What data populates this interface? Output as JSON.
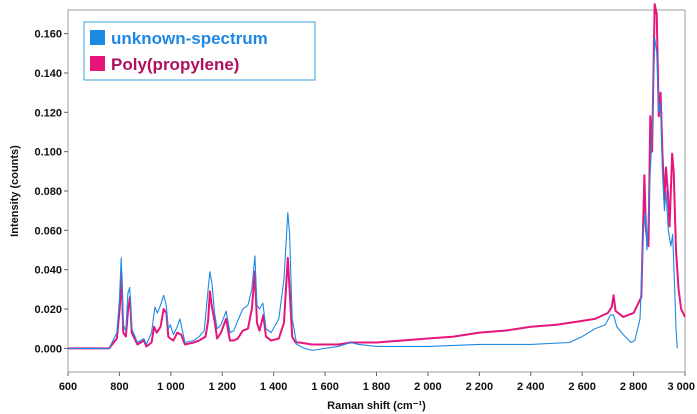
{
  "chart_data": {
    "type": "line",
    "xlabel": "Raman shift (cm⁻¹)",
    "ylabel": "Intensity (counts)",
    "xlim": [
      600,
      3000
    ],
    "ylim": [
      -0.012,
      0.172
    ],
    "xticks": [
      600,
      800,
      1000,
      1200,
      1400,
      1600,
      1800,
      2000,
      2200,
      2400,
      2600,
      2800,
      3000
    ],
    "xtick_labels": [
      "600",
      "800",
      "1 000",
      "1 200",
      "1 400",
      "1 600",
      "1 800",
      "2 000",
      "2 200",
      "2 400",
      "2 600",
      "2 800",
      "3 000"
    ],
    "yticks": [
      0.0,
      0.02,
      0.04,
      0.06,
      0.08,
      0.1,
      0.12,
      0.14,
      0.16
    ],
    "ytick_labels": [
      "0.000",
      "0.020",
      "0.040",
      "0.060",
      "0.080",
      "0.100",
      "0.120",
      "0.140",
      "0.160"
    ],
    "grid": false,
    "legend_position": "top-left",
    "series": [
      {
        "name": "Poly(propylene)",
        "color": "#e6157a",
        "points": [
          [
            600,
            0.0
          ],
          [
            760,
            0.0
          ],
          [
            790,
            0.005
          ],
          [
            801,
            0.02
          ],
          [
            808,
            0.038
          ],
          [
            815,
            0.008
          ],
          [
            825,
            0.006
          ],
          [
            834,
            0.02
          ],
          [
            841,
            0.026
          ],
          [
            848,
            0.008
          ],
          [
            870,
            0.002
          ],
          [
            895,
            0.004
          ],
          [
            905,
            0.001
          ],
          [
            925,
            0.003
          ],
          [
            935,
            0.011
          ],
          [
            945,
            0.008
          ],
          [
            960,
            0.011
          ],
          [
            972,
            0.02
          ],
          [
            983,
            0.018
          ],
          [
            990,
            0.006
          ],
          [
            998,
            0.005
          ],
          [
            1010,
            0.004
          ],
          [
            1025,
            0.008
          ],
          [
            1040,
            0.007
          ],
          [
            1055,
            0.002
          ],
          [
            1090,
            0.003
          ],
          [
            1110,
            0.004
          ],
          [
            1135,
            0.006
          ],
          [
            1145,
            0.014
          ],
          [
            1152,
            0.029
          ],
          [
            1160,
            0.021
          ],
          [
            1170,
            0.014
          ],
          [
            1180,
            0.005
          ],
          [
            1195,
            0.008
          ],
          [
            1215,
            0.015
          ],
          [
            1230,
            0.004
          ],
          [
            1245,
            0.004
          ],
          [
            1260,
            0.005
          ],
          [
            1280,
            0.009
          ],
          [
            1300,
            0.01
          ],
          [
            1315,
            0.02
          ],
          [
            1327,
            0.039
          ],
          [
            1335,
            0.013
          ],
          [
            1345,
            0.009
          ],
          [
            1360,
            0.017
          ],
          [
            1370,
            0.006
          ],
          [
            1390,
            0.004
          ],
          [
            1420,
            0.005
          ],
          [
            1440,
            0.013
          ],
          [
            1455,
            0.046
          ],
          [
            1462,
            0.03
          ],
          [
            1472,
            0.006
          ],
          [
            1485,
            0.003
          ],
          [
            1500,
            0.003
          ],
          [
            1550,
            0.002
          ],
          [
            1600,
            0.002
          ],
          [
            1650,
            0.002
          ],
          [
            1700,
            0.003
          ],
          [
            1750,
            0.003
          ],
          [
            1800,
            0.003
          ],
          [
            1900,
            0.004
          ],
          [
            2000,
            0.005
          ],
          [
            2100,
            0.006
          ],
          [
            2200,
            0.008
          ],
          [
            2300,
            0.009
          ],
          [
            2400,
            0.011
          ],
          [
            2500,
            0.012
          ],
          [
            2600,
            0.014
          ],
          [
            2650,
            0.015
          ],
          [
            2700,
            0.018
          ],
          [
            2715,
            0.021
          ],
          [
            2722,
            0.027
          ],
          [
            2730,
            0.019
          ],
          [
            2760,
            0.016
          ],
          [
            2800,
            0.018
          ],
          [
            2830,
            0.026
          ],
          [
            2842,
            0.088
          ],
          [
            2848,
            0.06
          ],
          [
            2858,
            0.052
          ],
          [
            2865,
            0.118
          ],
          [
            2872,
            0.1
          ],
          [
            2882,
            0.175
          ],
          [
            2890,
            0.17
          ],
          [
            2898,
            0.118
          ],
          [
            2905,
            0.13
          ],
          [
            2912,
            0.1
          ],
          [
            2920,
            0.075
          ],
          [
            2926,
            0.092
          ],
          [
            2933,
            0.08
          ],
          [
            2940,
            0.062
          ],
          [
            2950,
            0.099
          ],
          [
            2956,
            0.09
          ],
          [
            2965,
            0.05
          ],
          [
            2975,
            0.03
          ],
          [
            2985,
            0.02
          ],
          [
            3000,
            0.016
          ]
        ]
      },
      {
        "name": "unknown-spectrum",
        "color": "#1e88e5",
        "points": [
          [
            600,
            0.0
          ],
          [
            760,
            0.0
          ],
          [
            790,
            0.008
          ],
          [
            800,
            0.025
          ],
          [
            807,
            0.046
          ],
          [
            815,
            0.012
          ],
          [
            825,
            0.009
          ],
          [
            833,
            0.028
          ],
          [
            840,
            0.031
          ],
          [
            848,
            0.01
          ],
          [
            870,
            0.003
          ],
          [
            895,
            0.005
          ],
          [
            905,
            0.002
          ],
          [
            925,
            0.008
          ],
          [
            938,
            0.021
          ],
          [
            948,
            0.018
          ],
          [
            960,
            0.022
          ],
          [
            972,
            0.027
          ],
          [
            982,
            0.022
          ],
          [
            990,
            0.01
          ],
          [
            998,
            0.012
          ],
          [
            1010,
            0.007
          ],
          [
            1025,
            0.011
          ],
          [
            1035,
            0.015
          ],
          [
            1045,
            0.009
          ],
          [
            1055,
            0.003
          ],
          [
            1090,
            0.004
          ],
          [
            1110,
            0.006
          ],
          [
            1130,
            0.009
          ],
          [
            1145,
            0.03
          ],
          [
            1152,
            0.039
          ],
          [
            1160,
            0.033
          ],
          [
            1170,
            0.018
          ],
          [
            1180,
            0.01
          ],
          [
            1195,
            0.012
          ],
          [
            1215,
            0.019
          ],
          [
            1230,
            0.008
          ],
          [
            1245,
            0.009
          ],
          [
            1260,
            0.014
          ],
          [
            1280,
            0.02
          ],
          [
            1300,
            0.022
          ],
          [
            1315,
            0.03
          ],
          [
            1327,
            0.047
          ],
          [
            1335,
            0.022
          ],
          [
            1345,
            0.02
          ],
          [
            1358,
            0.023
          ],
          [
            1370,
            0.01
          ],
          [
            1390,
            0.008
          ],
          [
            1420,
            0.015
          ],
          [
            1440,
            0.035
          ],
          [
            1455,
            0.069
          ],
          [
            1462,
            0.058
          ],
          [
            1472,
            0.015
          ],
          [
            1490,
            0.002
          ],
          [
            1520,
            0.0
          ],
          [
            1550,
            -0.001
          ],
          [
            1600,
            0.0
          ],
          [
            1650,
            0.001
          ],
          [
            1700,
            0.003
          ],
          [
            1730,
            0.002
          ],
          [
            1800,
            0.001
          ],
          [
            1900,
            0.001
          ],
          [
            2000,
            0.001
          ],
          [
            2200,
            0.002
          ],
          [
            2400,
            0.002
          ],
          [
            2550,
            0.003
          ],
          [
            2600,
            0.006
          ],
          [
            2650,
            0.01
          ],
          [
            2690,
            0.012
          ],
          [
            2710,
            0.017
          ],
          [
            2722,
            0.017
          ],
          [
            2735,
            0.011
          ],
          [
            2760,
            0.007
          ],
          [
            2790,
            0.003
          ],
          [
            2805,
            0.004
          ],
          [
            2825,
            0.015
          ],
          [
            2838,
            0.06
          ],
          [
            2845,
            0.069
          ],
          [
            2852,
            0.05
          ],
          [
            2865,
            0.09
          ],
          [
            2872,
            0.11
          ],
          [
            2882,
            0.158
          ],
          [
            2890,
            0.15
          ],
          [
            2898,
            0.12
          ],
          [
            2905,
            0.125
          ],
          [
            2912,
            0.09
          ],
          [
            2920,
            0.07
          ],
          [
            2926,
            0.08
          ],
          [
            2935,
            0.06
          ],
          [
            2945,
            0.052
          ],
          [
            2952,
            0.058
          ],
          [
            2960,
            0.03
          ],
          [
            2965,
            0.01
          ],
          [
            2970,
            0.0
          ]
        ]
      }
    ]
  }
}
